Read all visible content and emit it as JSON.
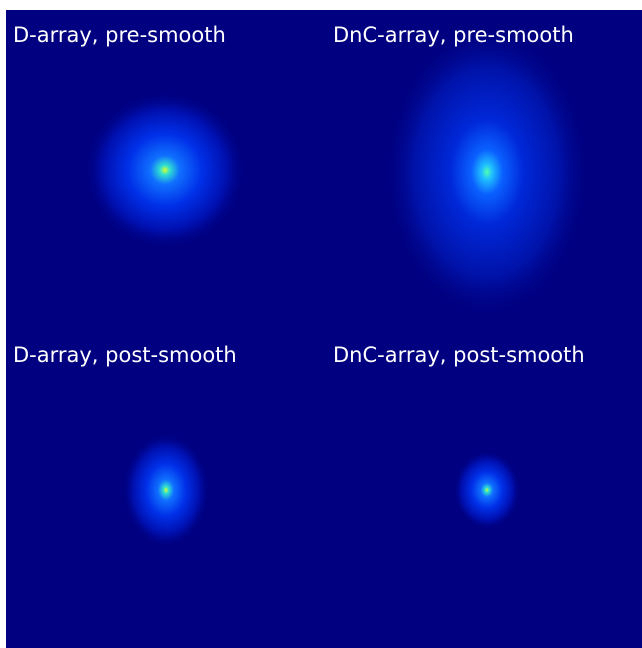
{
  "panels": [
    {
      "title": "D-array, pre-smooth"
    },
    {
      "title": "DnC-array, pre-smooth"
    },
    {
      "title": "D-array, post-smooth"
    },
    {
      "title": "DnC-array, post-smooth"
    }
  ]
}
